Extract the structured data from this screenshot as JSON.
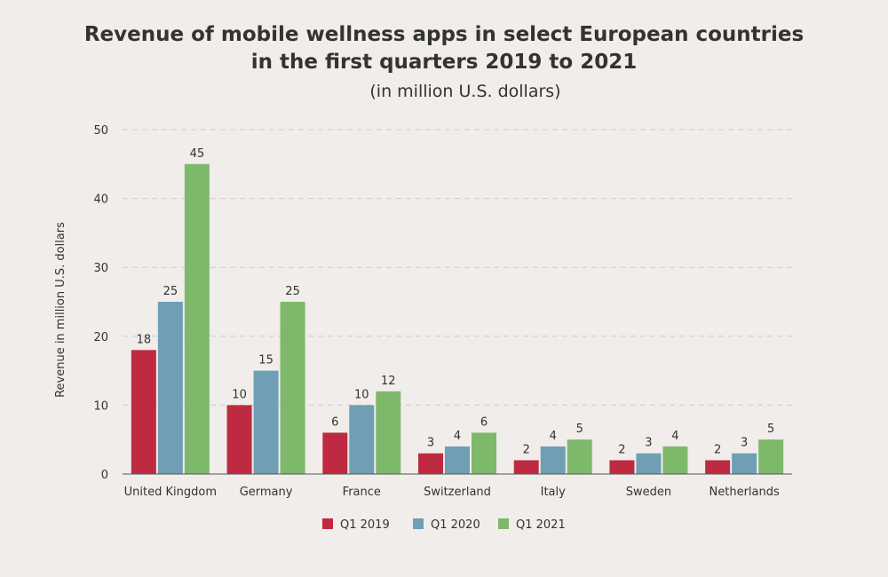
{
  "chart_data": {
    "type": "bar",
    "title": "Revenue of mobile wellness apps in select European countries",
    "title_line2": "in the first quarters 2019 to 2021",
    "subtitle": "(in million U.S. dollars)",
    "ylabel": "Revenue in million U.S. dollars",
    "xlabel": "",
    "ylim": [
      0,
      50
    ],
    "yticks": [
      0,
      10,
      20,
      30,
      40,
      50
    ],
    "grid": true,
    "legend_position": "bottom",
    "categories": [
      "United Kingdom",
      "Germany",
      "France",
      "Switzerland",
      "Italy",
      "Sweden",
      "Netherlands"
    ],
    "series": [
      {
        "name": "Q1 2019",
        "color": "#be2a42",
        "values": [
          18,
          10,
          6,
          3,
          2,
          2,
          2
        ]
      },
      {
        "name": "Q1 2020",
        "color": "#6e9fb5",
        "values": [
          25,
          15,
          10,
          4,
          4,
          3,
          3
        ]
      },
      {
        "name": "Q1 2021",
        "color": "#7eb86b",
        "values": [
          45,
          25,
          12,
          6,
          5,
          4,
          5
        ]
      }
    ]
  }
}
